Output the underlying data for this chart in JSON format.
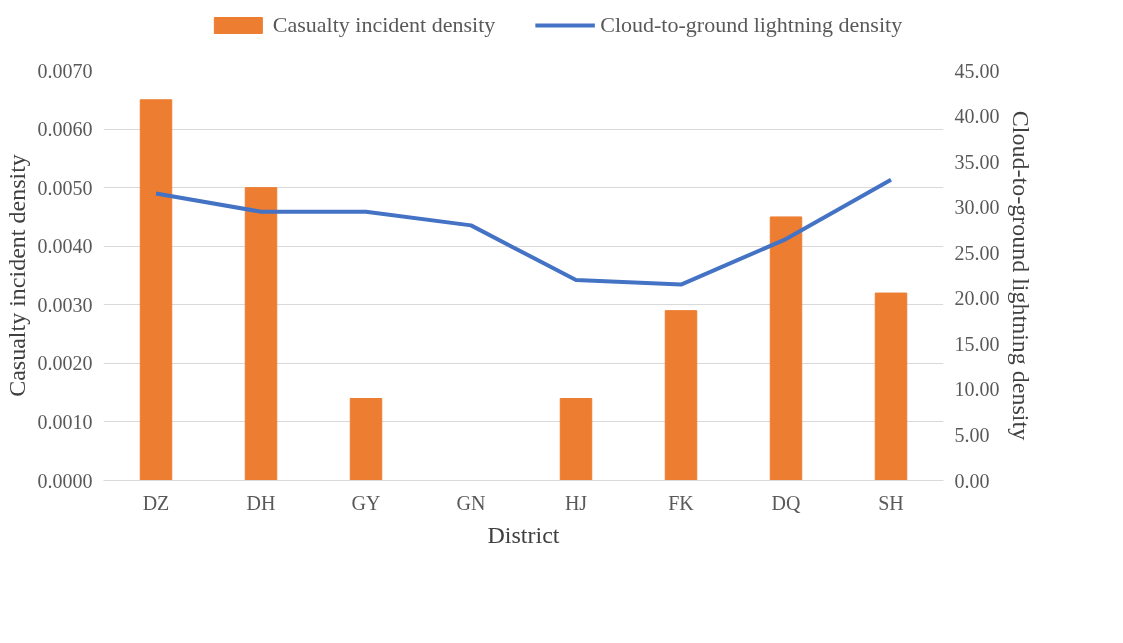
{
  "chart_data": {
    "type": "bar",
    "xlabel": "District",
    "ylabel": "Casualty incident density",
    "y2label": "Cloud-to-ground lightning density",
    "categories": [
      "DZ",
      "DH",
      "GY",
      "GN",
      "HJ",
      "FK",
      "DQ",
      "SH"
    ],
    "series": [
      {
        "name": "Casualty incident density",
        "color": "#ed7d31",
        "values": [
          0.0065,
          0.005,
          0.0014,
          0,
          0.0014,
          0.0029,
          0.0045,
          0.0032
        ]
      },
      {
        "name": "Cloud-to-ground lightning density",
        "color": "#4472c4",
        "type": "line",
        "axis": "y2",
        "values": [
          31.5,
          29.5,
          29.5,
          28,
          22,
          21.5,
          26.5,
          33
        ]
      }
    ],
    "ylim": [
      0,
      0.007
    ],
    "yticks": [
      {
        "value": 0,
        "label": "0.0000"
      },
      {
        "value": 0.001,
        "label": "0.0010"
      },
      {
        "value": 0.002,
        "label": "0.0020"
      },
      {
        "value": 0.003,
        "label": "0.0030"
      },
      {
        "value": 0.004,
        "label": "0.0040"
      },
      {
        "value": 0.005,
        "label": "0.0050"
      },
      {
        "value": 0.006,
        "label": "0.0060"
      },
      {
        "value": 0.007,
        "label": "0.0070"
      }
    ],
    "y2lim": [
      0,
      45
    ],
    "y2ticks": [
      {
        "value": 0,
        "label": "0.00"
      },
      {
        "value": 5,
        "label": "5.00"
      },
      {
        "value": 10,
        "label": "10.00"
      },
      {
        "value": 15,
        "label": "15.00"
      },
      {
        "value": 20,
        "label": "20.00"
      },
      {
        "value": 25,
        "label": "25.00"
      },
      {
        "value": 30,
        "label": "30.00"
      },
      {
        "value": 35,
        "label": "35.00"
      },
      {
        "value": 40,
        "label": "40.00"
      },
      {
        "value": 45,
        "label": "45.00"
      }
    ],
    "grid": "y",
    "legend": "top"
  }
}
